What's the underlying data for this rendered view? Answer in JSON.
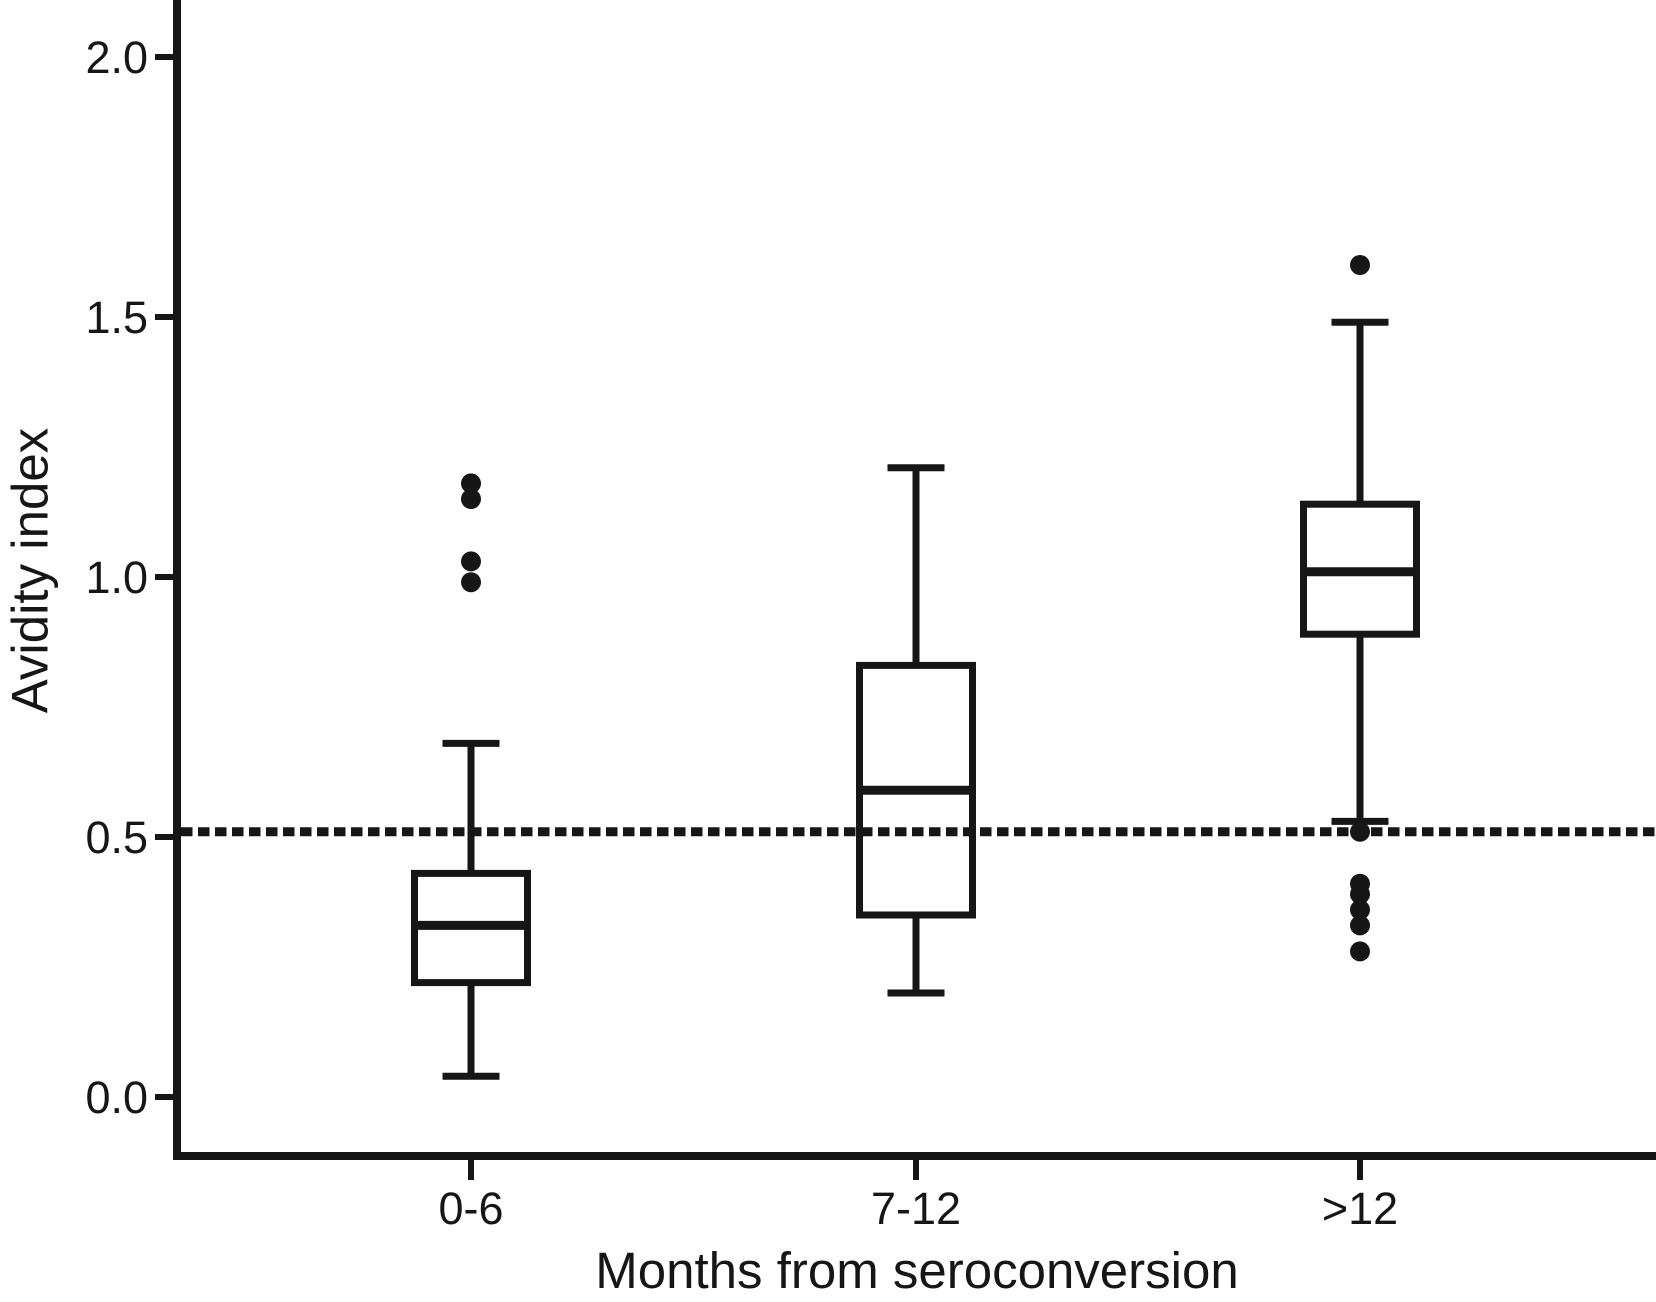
{
  "figure": {
    "background_color": "#ffffff",
    "ink_color": "#161616"
  },
  "chart_data": {
    "type": "box",
    "title": "",
    "xlabel": "Months from seroconversion",
    "ylabel": "Avidity index",
    "categories": [
      "0-6",
      "7-12",
      ">12"
    ],
    "y_ticks": [
      0.0,
      0.5,
      1.0,
      1.5,
      2.0
    ],
    "y_tick_labels": [
      "0.0",
      "0.5",
      "1.0",
      "1.5",
      "2.0"
    ],
    "ylim_visible": [
      -0.12,
      2.11
    ],
    "grid": "off",
    "legend": "none",
    "frame": "left-bottom",
    "reference_line": {
      "value": 0.51,
      "style": "dashed",
      "color": "#161616"
    },
    "groups": [
      {
        "label": "0-6",
        "whisker_low": 0.04,
        "q1": 0.22,
        "median": 0.33,
        "q3": 0.43,
        "whisker_high": 0.68,
        "outliers": [
          1.18,
          1.15,
          1.03,
          0.99
        ]
      },
      {
        "label": "7-12",
        "whisker_low": 0.2,
        "q1": 0.35,
        "median": 0.59,
        "q3": 0.83,
        "whisker_high": 1.21,
        "outliers": []
      },
      {
        "label": ">12",
        "whisker_low": 0.53,
        "q1": 0.89,
        "median": 1.01,
        "q3": 1.14,
        "whisker_high": 1.49,
        "outliers": [
          1.6,
          0.51,
          0.41,
          0.39,
          0.36,
          0.33,
          0.28
        ]
      }
    ]
  }
}
